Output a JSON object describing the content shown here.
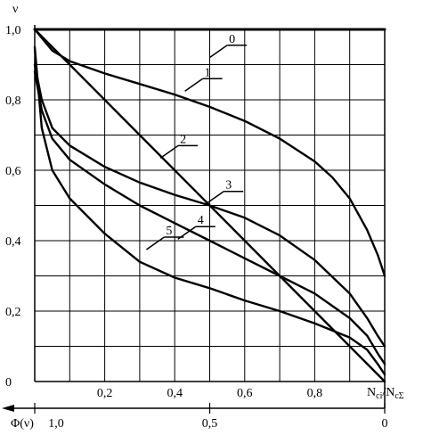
{
  "chart_data": {
    "type": "line",
    "ylabel": "ν",
    "xlabel_main": "N",
    "xlabel_sub1": "ci",
    "xlabel_sep": "/N",
    "xlabel_sub2": "cΣ",
    "xlim": [
      0,
      1
    ],
    "ylim": [
      0,
      1
    ],
    "x_ticks": [
      {
        "value": 0.2,
        "label": "0,2"
      },
      {
        "value": 0.4,
        "label": "0,4"
      },
      {
        "value": 0.6,
        "label": "0,6"
      },
      {
        "value": 0.8,
        "label": "0,8"
      }
    ],
    "y_ticks": [
      {
        "value": 0.0,
        "label": "0"
      },
      {
        "value": 0.2,
        "label": "0,2"
      },
      {
        "value": 0.4,
        "label": "0,4"
      },
      {
        "value": 0.6,
        "label": "0,6"
      },
      {
        "value": 0.8,
        "label": "0,8"
      },
      {
        "value": 1.0,
        "label": "1,0"
      }
    ],
    "grid": true,
    "secondary_axis": {
      "label": "Φ(ν)",
      "direction": "reversed",
      "ticks": [
        {
          "value": 1.0,
          "label": "1,0"
        },
        {
          "value": 0.5,
          "label": "0,5"
        },
        {
          "value": 0.0,
          "label": "0"
        }
      ]
    },
    "series": [
      {
        "name": "0",
        "x": [
          0,
          1
        ],
        "y": [
          1,
          1
        ]
      },
      {
        "name": "1",
        "x": [
          0,
          0.05,
          0.1,
          0.2,
          0.3,
          0.4,
          0.5,
          0.6,
          0.7,
          0.8,
          0.85,
          0.9,
          0.95,
          0.98,
          0.99,
          1.0
        ],
        "y": [
          1.0,
          0.94,
          0.91,
          0.875,
          0.845,
          0.815,
          0.78,
          0.74,
          0.69,
          0.625,
          0.58,
          0.52,
          0.43,
          0.36,
          0.33,
          0.3
        ]
      },
      {
        "name": "2",
        "x": [
          0,
          1
        ],
        "y": [
          1,
          0
        ]
      },
      {
        "name": "3",
        "x": [
          0,
          0.02,
          0.05,
          0.1,
          0.2,
          0.3,
          0.4,
          0.5,
          0.6,
          0.7,
          0.8,
          0.9,
          0.95,
          0.98,
          1.0
        ],
        "y": [
          0.9,
          0.8,
          0.72,
          0.67,
          0.61,
          0.565,
          0.53,
          0.5,
          0.465,
          0.415,
          0.345,
          0.25,
          0.18,
          0.13,
          0.1
        ]
      },
      {
        "name": "4",
        "x": [
          0,
          0.02,
          0.05,
          0.1,
          0.2,
          0.3,
          0.4,
          0.5,
          0.6,
          0.7,
          0.8,
          0.9,
          0.95,
          0.98,
          1.0
        ],
        "y": [
          0.88,
          0.77,
          0.69,
          0.63,
          0.56,
          0.5,
          0.45,
          0.4,
          0.35,
          0.3,
          0.25,
          0.18,
          0.13,
          0.08,
          0.05
        ]
      },
      {
        "name": "5",
        "x": [
          0,
          0.02,
          0.05,
          0.1,
          0.2,
          0.3,
          0.4,
          0.5,
          0.6,
          0.7,
          0.8,
          0.9,
          0.95,
          0.98,
          1.0
        ],
        "y": [
          0.95,
          0.72,
          0.6,
          0.52,
          0.42,
          0.34,
          0.295,
          0.265,
          0.23,
          0.2,
          0.165,
          0.125,
          0.09,
          0.05,
          0.02
        ]
      }
    ],
    "series_labels": [
      {
        "name": "0",
        "x": 0.55,
        "y": 0.955
      },
      {
        "name": "1",
        "x": 0.48,
        "y": 0.86
      },
      {
        "name": "2",
        "x": 0.41,
        "y": 0.67
      },
      {
        "name": "3",
        "x": 0.54,
        "y": 0.54
      },
      {
        "name": "4",
        "x": 0.46,
        "y": 0.44
      },
      {
        "name": "5",
        "x": 0.37,
        "y": 0.41
      }
    ]
  }
}
